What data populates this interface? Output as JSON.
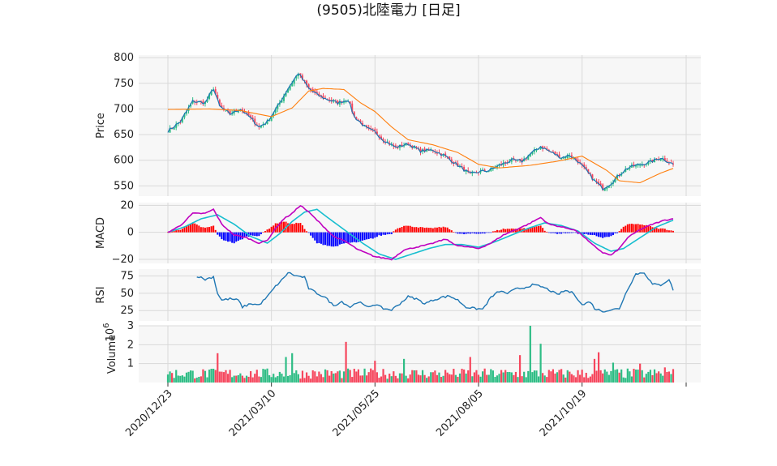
{
  "title": "(9505)北陸電力 [日足]",
  "colors": {
    "up": "#2ebd85",
    "down": "#f6465d",
    "close": "#1f77b4",
    "ma": "#ff7f0e",
    "macd": "#bf00bf",
    "signal": "#17becf",
    "hist_pos": "#ff0000",
    "hist_neg": "#0000ff",
    "rsi": "#1f77b4",
    "grid": "#d9d9d9",
    "panel": "#f7f7f7"
  },
  "chart_data": [
    {
      "type": "line",
      "panel": "price",
      "ylabel": "Price",
      "ylim": [
        530,
        805
      ],
      "yticks": [
        800,
        750,
        700,
        650,
        600,
        550
      ],
      "x_tick_labels": [
        "2020/12/23",
        "2021/03/10",
        "2021/05/25",
        "2021/08/05",
        "2021/10/19"
      ],
      "x_tick_index": [
        0,
        50,
        100,
        150,
        200
      ],
      "x_count": 245,
      "close_anchors": [
        [
          0,
          657
        ],
        [
          6,
          675
        ],
        [
          12,
          715
        ],
        [
          18,
          712
        ],
        [
          22,
          740
        ],
        [
          25,
          705
        ],
        [
          30,
          690
        ],
        [
          35,
          700
        ],
        [
          40,
          682
        ],
        [
          44,
          665
        ],
        [
          48,
          675
        ],
        [
          53,
          705
        ],
        [
          58,
          740
        ],
        [
          63,
          770
        ],
        [
          68,
          740
        ],
        [
          72,
          728
        ],
        [
          76,
          720
        ],
        [
          82,
          712
        ],
        [
          87,
          718
        ],
        [
          90,
          685
        ],
        [
          96,
          662
        ],
        [
          100,
          655
        ],
        [
          104,
          640
        ],
        [
          110,
          625
        ],
        [
          116,
          632
        ],
        [
          122,
          618
        ],
        [
          128,
          620
        ],
        [
          134,
          608
        ],
        [
          140,
          590
        ],
        [
          146,
          573
        ],
        [
          151,
          578
        ],
        [
          155,
          580
        ],
        [
          160,
          590
        ],
        [
          166,
          600
        ],
        [
          171,
          598
        ],
        [
          175,
          612
        ],
        [
          180,
          627
        ],
        [
          184,
          618
        ],
        [
          190,
          605
        ],
        [
          194,
          610
        ],
        [
          198,
          598
        ],
        [
          202,
          580
        ],
        [
          206,
          560
        ],
        [
          210,
          545
        ],
        [
          214,
          555
        ],
        [
          218,
          572
        ],
        [
          222,
          585
        ],
        [
          226,
          590
        ],
        [
          232,
          595
        ],
        [
          238,
          605
        ],
        [
          244,
          592
        ]
      ],
      "ma_anchors": [
        [
          0,
          699
        ],
        [
          20,
          700
        ],
        [
          35,
          697
        ],
        [
          50,
          685
        ],
        [
          60,
          702
        ],
        [
          68,
          735
        ],
        [
          75,
          740
        ],
        [
          85,
          738
        ],
        [
          93,
          712
        ],
        [
          100,
          695
        ],
        [
          108,
          665
        ],
        [
          116,
          640
        ],
        [
          128,
          630
        ],
        [
          140,
          615
        ],
        [
          150,
          592
        ],
        [
          160,
          585
        ],
        [
          175,
          590
        ],
        [
          188,
          598
        ],
        [
          200,
          608
        ],
        [
          212,
          580
        ],
        [
          218,
          560
        ],
        [
          228,
          556
        ],
        [
          238,
          575
        ],
        [
          244,
          584
        ]
      ]
    },
    {
      "type": "line",
      "panel": "macd",
      "ylabel": "MACD",
      "ylim": [
        -23,
        22
      ],
      "yticks": [
        20,
        0,
        -20
      ],
      "macd_anchors": [
        [
          0,
          0
        ],
        [
          6,
          5
        ],
        [
          12,
          14
        ],
        [
          18,
          14
        ],
        [
          22,
          17
        ],
        [
          26,
          6
        ],
        [
          32,
          -2
        ],
        [
          38,
          -4
        ],
        [
          44,
          -8
        ],
        [
          48,
          -6
        ],
        [
          52,
          3
        ],
        [
          56,
          10
        ],
        [
          60,
          14
        ],
        [
          64,
          20
        ],
        [
          68,
          15
        ],
        [
          74,
          6
        ],
        [
          80,
          -3
        ],
        [
          86,
          -7
        ],
        [
          92,
          -13
        ],
        [
          100,
          -18
        ],
        [
          108,
          -20
        ],
        [
          114,
          -13
        ],
        [
          120,
          -11
        ],
        [
          126,
          -9
        ],
        [
          134,
          -5
        ],
        [
          140,
          -10
        ],
        [
          146,
          -11
        ],
        [
          150,
          -12
        ],
        [
          156,
          -8
        ],
        [
          162,
          -2
        ],
        [
          168,
          2
        ],
        [
          174,
          6
        ],
        [
          180,
          11
        ],
        [
          184,
          6
        ],
        [
          190,
          4
        ],
        [
          196,
          2
        ],
        [
          200,
          -2
        ],
        [
          204,
          -8
        ],
        [
          210,
          -15
        ],
        [
          214,
          -17
        ],
        [
          218,
          -12
        ],
        [
          222,
          -4
        ],
        [
          228,
          2
        ],
        [
          234,
          6
        ],
        [
          240,
          9
        ],
        [
          244,
          10
        ]
      ],
      "signal_anchors": [
        [
          0,
          0
        ],
        [
          8,
          4
        ],
        [
          16,
          10
        ],
        [
          24,
          13
        ],
        [
          32,
          6
        ],
        [
          40,
          -3
        ],
        [
          48,
          -8
        ],
        [
          54,
          -1
        ],
        [
          60,
          8
        ],
        [
          66,
          15
        ],
        [
          72,
          17
        ],
        [
          78,
          10
        ],
        [
          86,
          1
        ],
        [
          94,
          -8
        ],
        [
          102,
          -16
        ],
        [
          110,
          -20
        ],
        [
          118,
          -16
        ],
        [
          126,
          -12
        ],
        [
          134,
          -9
        ],
        [
          142,
          -9
        ],
        [
          150,
          -11
        ],
        [
          158,
          -7
        ],
        [
          166,
          -2
        ],
        [
          174,
          3
        ],
        [
          182,
          7
        ],
        [
          190,
          5
        ],
        [
          198,
          1
        ],
        [
          206,
          -8
        ],
        [
          214,
          -14
        ],
        [
          220,
          -12
        ],
        [
          228,
          -4
        ],
        [
          236,
          4
        ],
        [
          244,
          9
        ]
      ]
    },
    {
      "type": "line",
      "panel": "rsi",
      "ylabel": "RSI",
      "ylim": [
        10,
        85
      ],
      "yticks": [
        75,
        50,
        25
      ],
      "rsi_anchors": [
        [
          14,
          75
        ],
        [
          18,
          70
        ],
        [
          22,
          74
        ],
        [
          24,
          50
        ],
        [
          26,
          40
        ],
        [
          30,
          42
        ],
        [
          34,
          40
        ],
        [
          36,
          30
        ],
        [
          40,
          35
        ],
        [
          44,
          33
        ],
        [
          48,
          45
        ],
        [
          52,
          60
        ],
        [
          56,
          72
        ],
        [
          58,
          80
        ],
        [
          62,
          75
        ],
        [
          66,
          73
        ],
        [
          68,
          57
        ],
        [
          72,
          50
        ],
        [
          76,
          44
        ],
        [
          80,
          32
        ],
        [
          84,
          38
        ],
        [
          88,
          30
        ],
        [
          92,
          38
        ],
        [
          96,
          30
        ],
        [
          100,
          34
        ],
        [
          104,
          28
        ],
        [
          108,
          26
        ],
        [
          112,
          35
        ],
        [
          116,
          45
        ],
        [
          120,
          42
        ],
        [
          124,
          35
        ],
        [
          128,
          40
        ],
        [
          132,
          44
        ],
        [
          136,
          46
        ],
        [
          140,
          40
        ],
        [
          144,
          30
        ],
        [
          148,
          28
        ],
        [
          152,
          27
        ],
        [
          156,
          44
        ],
        [
          160,
          53
        ],
        [
          164,
          50
        ],
        [
          168,
          56
        ],
        [
          172,
          58
        ],
        [
          176,
          62
        ],
        [
          180,
          60
        ],
        [
          184,
          55
        ],
        [
          188,
          48
        ],
        [
          192,
          54
        ],
        [
          196,
          50
        ],
        [
          200,
          33
        ],
        [
          204,
          38
        ],
        [
          206,
          28
        ],
        [
          210,
          24
        ],
        [
          214,
          26
        ],
        [
          218,
          28
        ],
        [
          222,
          56
        ],
        [
          226,
          78
        ],
        [
          230,
          80
        ],
        [
          234,
          63
        ],
        [
          238,
          62
        ],
        [
          242,
          70
        ],
        [
          244,
          55
        ]
      ]
    },
    {
      "type": "bar",
      "panel": "volume",
      "ylabel": "Volume",
      "yunit": "10^6",
      "ylim": [
        0,
        3.0
      ],
      "yticks": [
        3,
        2,
        1
      ],
      "spikes": [
        [
          24,
          1.55
        ],
        [
          57,
          1.35
        ],
        [
          60,
          1.55
        ],
        [
          86,
          2.15
        ],
        [
          100,
          1.15
        ],
        [
          114,
          1.25
        ],
        [
          146,
          1.35
        ],
        [
          170,
          1.45
        ],
        [
          175,
          3.0
        ],
        [
          180,
          2.05
        ],
        [
          206,
          1.25
        ],
        [
          208,
          1.6
        ],
        [
          215,
          1.05
        ],
        [
          228,
          1.0
        ],
        [
          240,
          0.8
        ]
      ]
    }
  ]
}
